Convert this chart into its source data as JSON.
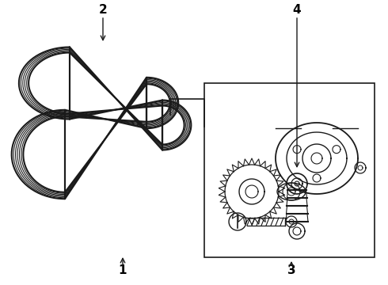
{
  "background_color": "#ffffff",
  "line_color": "#1a1a1a",
  "label_color": "#000000",
  "figsize": [
    4.9,
    3.6
  ],
  "dpi": 100,
  "belt2_color": "#2a2a2a",
  "belt1_color": "#2a2a2a"
}
